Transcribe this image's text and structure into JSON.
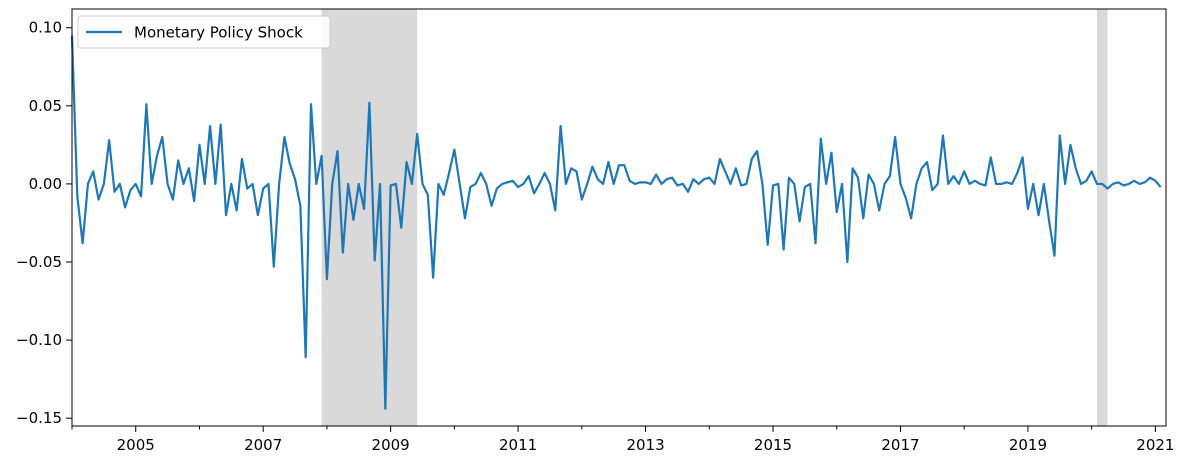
{
  "chart_data": {
    "type": "line",
    "title": "",
    "xlabel": "",
    "ylabel": "",
    "legend": {
      "placement": "top-left",
      "entries": [
        "Monetary Policy Shock"
      ]
    },
    "grid": false,
    "xlim": [
      "2004-01",
      "2021-03"
    ],
    "ylim": [
      -0.155,
      0.112
    ],
    "x_ticks": [
      "2005",
      "2007",
      "2009",
      "2011",
      "2013",
      "2015",
      "2017",
      "2019",
      "2021"
    ],
    "y_ticks": [
      "0.10",
      "0.05",
      "0.00",
      "−0.05",
      "−0.10",
      "−0.15"
    ],
    "recessions": [
      {
        "start": "2007-12",
        "end": "2009-06"
      },
      {
        "start": "2020-02",
        "end": "2020-04"
      }
    ],
    "line_color": "#1f77b4",
    "recession_color": "#d9d9d9",
    "series": [
      {
        "name": "Monetary Policy Shock",
        "start": "2004-01",
        "frequency": "monthly",
        "values": [
          0.095,
          -0.008,
          -0.038,
          0.0,
          0.008,
          -0.01,
          0.0,
          0.028,
          -0.005,
          0.0,
          -0.015,
          -0.004,
          0.0,
          -0.008,
          0.051,
          0.0,
          0.018,
          0.03,
          0.0,
          -0.01,
          0.015,
          0.0,
          0.01,
          -0.011,
          0.025,
          0.0,
          0.037,
          0.0,
          0.038,
          -0.02,
          0.0,
          -0.017,
          0.016,
          -0.003,
          0.0,
          -0.02,
          -0.003,
          0.0,
          -0.053,
          0.0,
          0.03,
          0.013,
          0.003,
          -0.014,
          -0.111,
          0.051,
          0.0,
          0.018,
          -0.061,
          0.0,
          0.021,
          -0.044,
          0.0,
          -0.023,
          0.0,
          -0.016,
          0.052,
          -0.049,
          0.0,
          -0.144,
          -0.001,
          0.0,
          -0.028,
          0.014,
          0.0,
          0.032,
          0.0,
          -0.007,
          -0.06,
          0.0,
          -0.007,
          0.007,
          0.022,
          0.0,
          -0.022,
          -0.002,
          0.0,
          0.007,
          0.0,
          -0.014,
          -0.003,
          0.0,
          0.001,
          0.002,
          -0.002,
          0.0,
          0.005,
          -0.006,
          0.0,
          0.007,
          0.0,
          -0.017,
          0.037,
          0.0,
          0.01,
          0.008,
          -0.01,
          0.0,
          0.011,
          0.003,
          0.0,
          0.014,
          0.0,
          0.012,
          0.012,
          0.002,
          0.0,
          0.001,
          0.001,
          0.0,
          0.006,
          0.0,
          0.003,
          0.004,
          -0.001,
          0.0,
          -0.005,
          0.003,
          0.0,
          0.003,
          0.004,
          0.0,
          0.016,
          0.008,
          0.0,
          0.01,
          -0.001,
          0.0,
          0.016,
          0.021,
          0.0,
          -0.039,
          -0.001,
          0.0,
          -0.042,
          0.004,
          0.0,
          -0.024,
          -0.002,
          0.0,
          -0.038,
          0.029,
          0.0,
          0.02,
          -0.018,
          0.0,
          -0.05,
          0.01,
          0.004,
          -0.022,
          0.006,
          0.0,
          -0.017,
          0.0,
          0.005,
          0.03,
          0.0,
          -0.009,
          -0.022,
          0.0,
          0.01,
          0.014,
          -0.004,
          0.0,
          0.031,
          0.0,
          0.005,
          0.0,
          0.008,
          0.0,
          0.002,
          0.0,
          -0.001,
          0.017,
          0.0,
          0.0,
          0.001,
          0.0,
          0.007,
          0.017,
          -0.016,
          0.0,
          -0.02,
          0.0,
          -0.024,
          -0.046,
          0.031,
          0.0,
          0.025,
          0.01,
          0.0,
          0.002,
          0.008,
          0.0,
          0.0,
          -0.003,
          0.0,
          0.001,
          -0.001,
          0.0,
          0.002,
          0.0,
          0.001,
          0.004,
          0.002,
          -0.002
        ]
      }
    ]
  }
}
